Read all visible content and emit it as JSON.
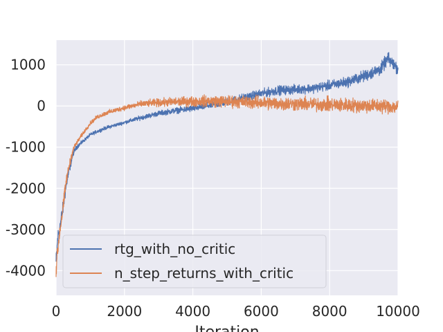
{
  "chart_data": {
    "type": "line",
    "title": "",
    "xlabel": "Iteration",
    "ylabel": "",
    "xlim": [
      0,
      10000
    ],
    "ylim": [
      -4600,
      1600
    ],
    "xticks": [
      0,
      2000,
      4000,
      6000,
      8000,
      10000
    ],
    "yticks": [
      -4000,
      -3000,
      -2000,
      -1000,
      0,
      1000
    ],
    "xtick_labels": [
      "0",
      "2000",
      "4000",
      "6000",
      "8000",
      "10000"
    ],
    "ytick_labels": [
      "-4000",
      "-3000",
      "-2000",
      "-1000",
      "0",
      "1000"
    ],
    "grid": true,
    "legend": "lower-left",
    "background": "#EAEAF2",
    "series": [
      {
        "name": "rtg_with_no_critic",
        "color": "#4C72B0",
        "x": [
          0,
          50,
          100,
          200,
          300,
          400,
          500,
          600,
          800,
          1000,
          1200,
          1500,
          1800,
          2000,
          2500,
          3000,
          3500,
          4000,
          4500,
          5000,
          5500,
          6000,
          6500,
          7000,
          7500,
          8000,
          8500,
          9000,
          9500,
          9700,
          10000
        ],
        "y": [
          -3800,
          -3200,
          -3000,
          -2500,
          -1900,
          -1500,
          -1150,
          -1000,
          -850,
          -700,
          -620,
          -520,
          -450,
          -400,
          -280,
          -180,
          -110,
          -60,
          20,
          100,
          200,
          300,
          380,
          400,
          430,
          500,
          580,
          720,
          900,
          1150,
          900
        ],
        "noise": [
          300,
          300,
          300,
          250,
          200,
          150,
          100,
          80,
          60,
          60,
          60,
          60,
          60,
          60,
          80,
          90,
          100,
          120,
          130,
          140,
          150,
          150,
          160,
          160,
          160,
          170,
          180,
          200,
          220,
          220,
          200
        ]
      },
      {
        "name": "n_step_returns_with_critic",
        "color": "#DD8452",
        "x": [
          0,
          50,
          100,
          200,
          300,
          400,
          500,
          600,
          800,
          1000,
          1200,
          1500,
          1800,
          2000,
          2500,
          3000,
          3500,
          4000,
          4500,
          5000,
          5500,
          6000,
          6500,
          7000,
          7500,
          8000,
          8500,
          9000,
          9500,
          10000
        ],
        "y": [
          -4000,
          -3500,
          -3100,
          -2500,
          -1800,
          -1400,
          -1050,
          -900,
          -650,
          -420,
          -270,
          -160,
          -90,
          -40,
          50,
          80,
          100,
          110,
          120,
          110,
          100,
          80,
          60,
          50,
          40,
          30,
          20,
          10,
          0,
          -20
        ],
        "noise": [
          300,
          300,
          300,
          250,
          200,
          150,
          100,
          80,
          70,
          70,
          70,
          80,
          80,
          90,
          110,
          140,
          160,
          180,
          200,
          210,
          220,
          230,
          240,
          240,
          240,
          250,
          250,
          250,
          250,
          250
        ]
      }
    ]
  }
}
